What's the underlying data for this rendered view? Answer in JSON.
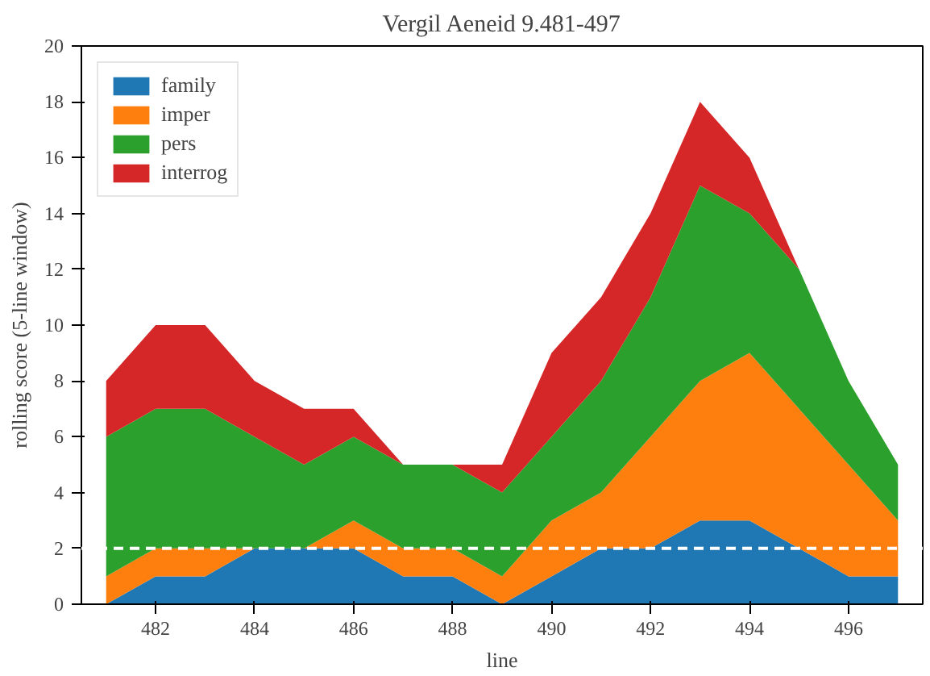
{
  "chart_data": {
    "type": "area",
    "stacked": true,
    "title": "Vergil Aeneid 9.481-497",
    "xlabel": "line",
    "ylabel": "rolling score (5-line window)",
    "x": [
      481,
      482,
      483,
      484,
      485,
      486,
      487,
      488,
      489,
      490,
      491,
      492,
      493,
      494,
      495,
      496,
      497
    ],
    "series": [
      {
        "name": "family",
        "color": "#1f77b4",
        "values": [
          0,
          1,
          1,
          2,
          2,
          2,
          1,
          1,
          0,
          1,
          2,
          2,
          3,
          3,
          2,
          1,
          1
        ]
      },
      {
        "name": "imper",
        "color": "#ff7f0e",
        "values": [
          1,
          1,
          1,
          0,
          0,
          1,
          1,
          1,
          1,
          2,
          2,
          4,
          5,
          6,
          5,
          4,
          2
        ]
      },
      {
        "name": "pers",
        "color": "#2ca02c",
        "values": [
          5,
          5,
          5,
          4,
          3,
          3,
          3,
          3,
          3,
          3,
          4,
          5,
          7,
          5,
          5,
          3,
          2
        ]
      },
      {
        "name": "interrog",
        "color": "#d62728",
        "values": [
          2,
          3,
          3,
          2,
          2,
          1,
          0,
          0,
          1,
          3,
          3,
          3,
          3,
          2,
          0,
          0,
          0
        ]
      }
    ],
    "xlim": [
      480.5,
      497.5
    ],
    "ylim": [
      0,
      20
    ],
    "xticks": [
      482,
      484,
      486,
      488,
      490,
      492,
      494,
      496
    ],
    "yticks": [
      0,
      2,
      4,
      6,
      8,
      10,
      12,
      14,
      16,
      18,
      20
    ],
    "ref_lines": [
      {
        "axis": "y",
        "value": 2,
        "color": "#ffffff",
        "line_style": "dashed"
      }
    ],
    "grid": false,
    "legend": "top left"
  }
}
